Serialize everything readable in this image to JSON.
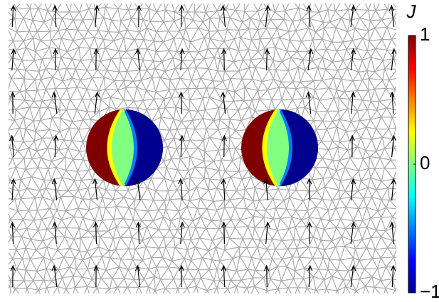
{
  "chart_data": {
    "type": "field",
    "colorbar_label": "J",
    "clim": [
      -1,
      1
    ],
    "cticks": [
      {
        "value": 1,
        "label": "1"
      },
      {
        "value": 0,
        "label": "0"
      },
      {
        "value": -1,
        "label": "−1"
      }
    ],
    "colormap": [
      "#00008f",
      "#0000ff",
      "#0080ff",
      "#00ffff",
      "#80ff80",
      "#ffff00",
      "#ff8000",
      "#ff0000",
      "#800000"
    ]
  }
}
